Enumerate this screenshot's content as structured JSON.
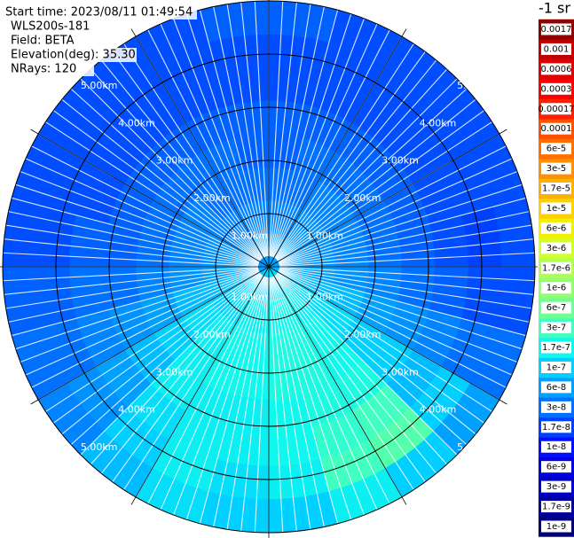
{
  "chart_data": {
    "type": "polar_heatmap",
    "info": [
      "Start time: 2023/08/11 01:49:54",
      "WLS200s-181",
      "Field: BETA",
      "Elevation(deg): 35.30",
      "NRays: 120"
    ],
    "rlim": [
      0,
      5
    ],
    "rticks": [
      {
        "value": 1,
        "label": "1.00km"
      },
      {
        "value": 2,
        "label": "2.00km"
      },
      {
        "value": 3,
        "label": "3.00km"
      },
      {
        "value": 4,
        "label": "4.00km"
      },
      {
        "value": 5,
        "label": "5.00km"
      }
    ],
    "theta": [
      0,
      15,
      30,
      45,
      60,
      75,
      90,
      105,
      120,
      135,
      150,
      165,
      180,
      195,
      210,
      225,
      240,
      255,
      270,
      285,
      300,
      315,
      330,
      345
    ],
    "r_edges": [
      0,
      0.625,
      1.25,
      1.875,
      2.5,
      3.125,
      3.75,
      4.375,
      5
    ],
    "values": [
      [
        6e-08,
        4e-08,
        3e-08,
        2.5e-08,
        2.5e-08,
        2e-08,
        2e-08,
        2.5e-08
      ],
      [
        6e-08,
        4e-08,
        3e-08,
        3e-08,
        2.5e-08,
        2e-08,
        2e-08,
        2e-08
      ],
      [
        6e-08,
        5e-08,
        4e-08,
        3e-08,
        2.5e-08,
        2e-08,
        2e-08,
        2e-08
      ],
      [
        6e-08,
        5e-08,
        4e-08,
        3e-08,
        2.5e-08,
        2e-08,
        2e-08,
        2e-08
      ],
      [
        6e-08,
        5e-08,
        4e-08,
        3e-08,
        2.5e-08,
        2e-08,
        2e-08,
        2e-08
      ],
      [
        6e-08,
        5e-08,
        4e-08,
        3e-08,
        2.5e-08,
        2e-08,
        1.7e-08,
        2e-08
      ],
      [
        7e-08,
        6e-08,
        5e-08,
        4e-08,
        3e-08,
        2.5e-08,
        2e-08,
        2e-08
      ],
      [
        8e-08,
        8e-08,
        8e-08,
        6e-08,
        5e-08,
        4e-08,
        3e-08,
        3e-08
      ],
      [
        1e-07,
        1.2e-07,
        1.2e-07,
        1e-07,
        1e-07,
        8e-08,
        1e-07,
        6e-08
      ],
      [
        1.2e-07,
        1.5e-07,
        1.7e-07,
        1.7e-07,
        2e-07,
        3e-07,
        4e-07,
        1e-07
      ],
      [
        1.2e-07,
        1.7e-07,
        2e-07,
        2e-07,
        2e-07,
        2.5e-07,
        3e-07,
        1.5e-07
      ],
      [
        1.2e-07,
        1.7e-07,
        2e-07,
        2e-07,
        1.7e-07,
        1.7e-07,
        1.5e-07,
        1e-07
      ],
      [
        1e-07,
        1.5e-07,
        1.7e-07,
        1.7e-07,
        1.5e-07,
        1.5e-07,
        1.2e-07,
        1e-07
      ],
      [
        1e-07,
        1.5e-07,
        1.7e-07,
        1.7e-07,
        1.5e-07,
        1.5e-07,
        1.5e-07,
        1.2e-07
      ],
      [
        1e-07,
        1.2e-07,
        1.5e-07,
        1.5e-07,
        1.5e-07,
        1.2e-07,
        1e-07,
        8e-08
      ],
      [
        8e-08,
        1e-07,
        1.2e-07,
        1e-07,
        8e-08,
        6e-08,
        5e-08,
        4e-08
      ],
      [
        7e-08,
        8e-08,
        8e-08,
        6e-08,
        5e-08,
        4e-08,
        3e-08,
        3e-08
      ],
      [
        6e-08,
        6e-08,
        5e-08,
        4e-08,
        3e-08,
        3e-08,
        2.5e-08,
        2.5e-08
      ],
      [
        6e-08,
        5e-08,
        4e-08,
        3e-08,
        2.5e-08,
        2.5e-08,
        2e-08,
        2e-08
      ],
      [
        5e-08,
        5e-08,
        4e-08,
        3e-08,
        2.5e-08,
        2e-08,
        2e-08,
        2e-08
      ],
      [
        5e-08,
        4e-08,
        4e-08,
        3e-08,
        2.5e-08,
        2e-08,
        2e-08,
        2e-08
      ],
      [
        5e-08,
        4e-08,
        3e-08,
        3e-08,
        2.5e-08,
        2e-08,
        2e-08,
        2e-08
      ],
      [
        6e-08,
        4e-08,
        3e-08,
        3e-08,
        2.5e-08,
        2e-08,
        2e-08,
        2e-08
      ],
      [
        6e-08,
        4e-08,
        3e-08,
        2.5e-08,
        2.5e-08,
        2e-08,
        2e-08,
        2.5e-08
      ]
    ],
    "colorbar": {
      "title": "-1 sr",
      "log_scale": true,
      "ticks": [
        {
          "value": 1e-09,
          "label": "1e-9"
        },
        {
          "value": 1.7e-09,
          "label": "1.7e-9"
        },
        {
          "value": 3e-09,
          "label": "3e-9"
        },
        {
          "value": 6e-09,
          "label": "6e-9"
        },
        {
          "value": 1e-08,
          "label": "1e-8"
        },
        {
          "value": 1.7e-08,
          "label": "1.7e-8"
        },
        {
          "value": 3e-08,
          "label": "3e-8"
        },
        {
          "value": 6e-08,
          "label": "6e-8"
        },
        {
          "value": 1e-07,
          "label": "1e-7"
        },
        {
          "value": 1.7e-07,
          "label": "1.7e-7"
        },
        {
          "value": 3e-07,
          "label": "3e-7"
        },
        {
          "value": 6e-07,
          "label": "6e-7"
        },
        {
          "value": 1e-06,
          "label": "1e-6"
        },
        {
          "value": 1.7e-06,
          "label": "1.7e-6"
        },
        {
          "value": 3e-06,
          "label": "3e-6"
        },
        {
          "value": 6e-06,
          "label": "6e-6"
        },
        {
          "value": 1e-05,
          "label": "1e-5"
        },
        {
          "value": 1.7e-05,
          "label": "1.7e-5"
        },
        {
          "value": 3e-05,
          "label": "3e-5"
        },
        {
          "value": 6e-05,
          "label": "6e-5"
        },
        {
          "value": 0.0001,
          "label": "0.0001"
        },
        {
          "value": 0.00017,
          "label": "0.00017"
        },
        {
          "value": 0.0003,
          "label": "0.0003"
        },
        {
          "value": 0.0006,
          "label": "0.0006"
        },
        {
          "value": 0.001,
          "label": "0.001"
        },
        {
          "value": 0.0017,
          "label": "0.0017"
        }
      ],
      "colors": [
        "#00007a",
        "#00009a",
        "#0000c0",
        "#0000e6",
        "#0010ff",
        "#0040ff",
        "#0070ff",
        "#00a0ff",
        "#00d0ff",
        "#10f8ee",
        "#40ffc0",
        "#70ff90",
        "#90ff70",
        "#b0ff50",
        "#d0ff30",
        "#f0f000",
        "#ffd000",
        "#ffb000",
        "#ff9000",
        "#ff7000",
        "#ff5000",
        "#ff2000",
        "#ff0000",
        "#e00000",
        "#c00000",
        "#900000"
      ]
    }
  }
}
